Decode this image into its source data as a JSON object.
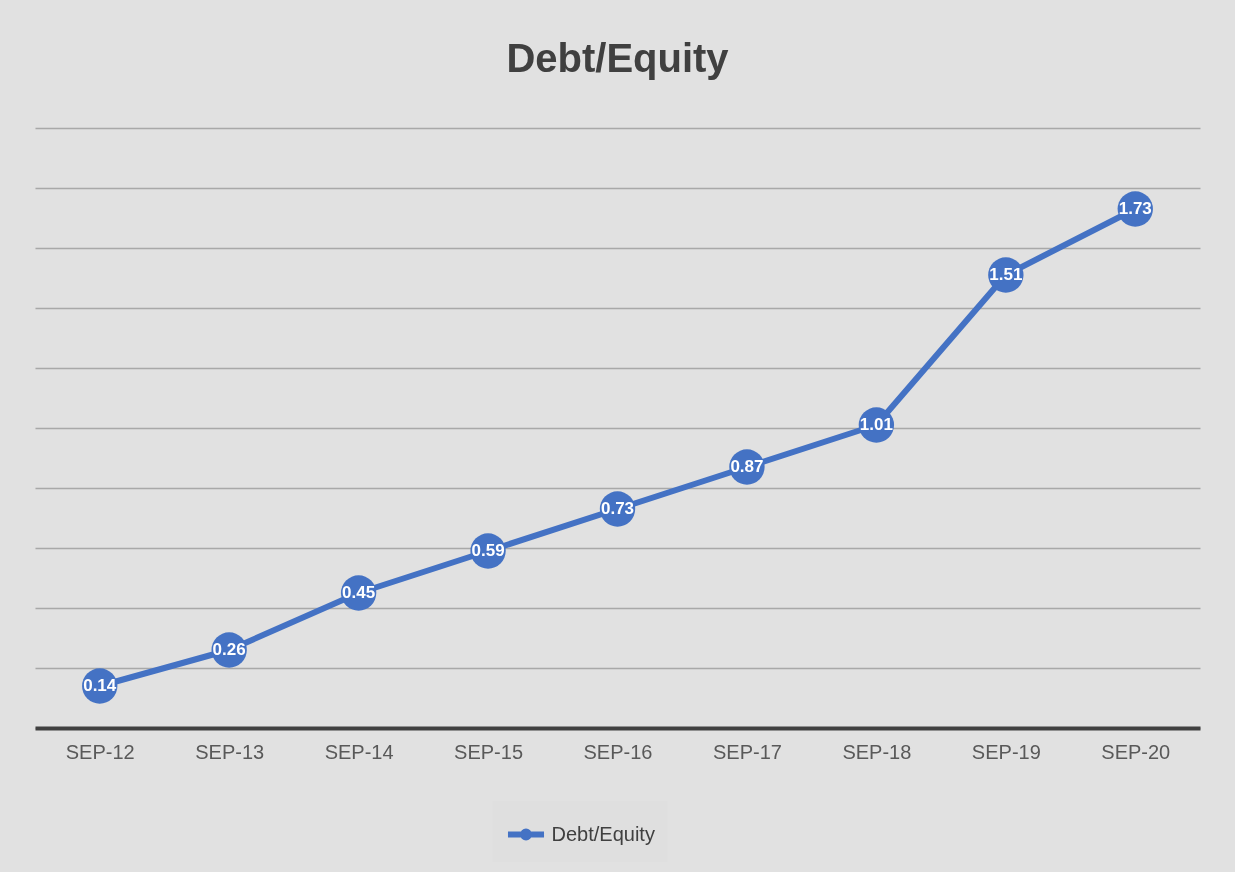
{
  "chart_data": {
    "type": "line",
    "title": "Debt/Equity",
    "categories": [
      "SEP-12",
      "SEP-13",
      "SEP-14",
      "SEP-15",
      "SEP-16",
      "SEP-17",
      "SEP-18",
      "SEP-19",
      "SEP-20"
    ],
    "series": [
      {
        "name": "Debt/Equity",
        "color": "#4472c4",
        "values": [
          0.14,
          0.26,
          0.45,
          0.59,
          0.73,
          0.87,
          1.01,
          1.51,
          1.73
        ]
      }
    ],
    "ylim": [
      0,
      2
    ],
    "yticks": [
      {
        "value": 0,
        "label": null
      },
      {
        "value": 0.2,
        "label": null
      },
      {
        "value": 0.4,
        "label": null
      },
      {
        "value": 0.6,
        "label": null
      },
      {
        "value": 0.8,
        "label": null
      },
      {
        "value": 1.0,
        "label": null
      },
      {
        "value": 1.2,
        "label": null
      },
      {
        "value": 1.4,
        "label": null
      },
      {
        "value": 1.6,
        "label": null
      },
      {
        "value": 1.8,
        "label": null
      },
      {
        "value": 2.0,
        "label": null
      }
    ],
    "grid": "y",
    "tick_labels": "x",
    "legend": "bottom",
    "marker": "circle",
    "line_style": "solid",
    "data_labels": true
  }
}
